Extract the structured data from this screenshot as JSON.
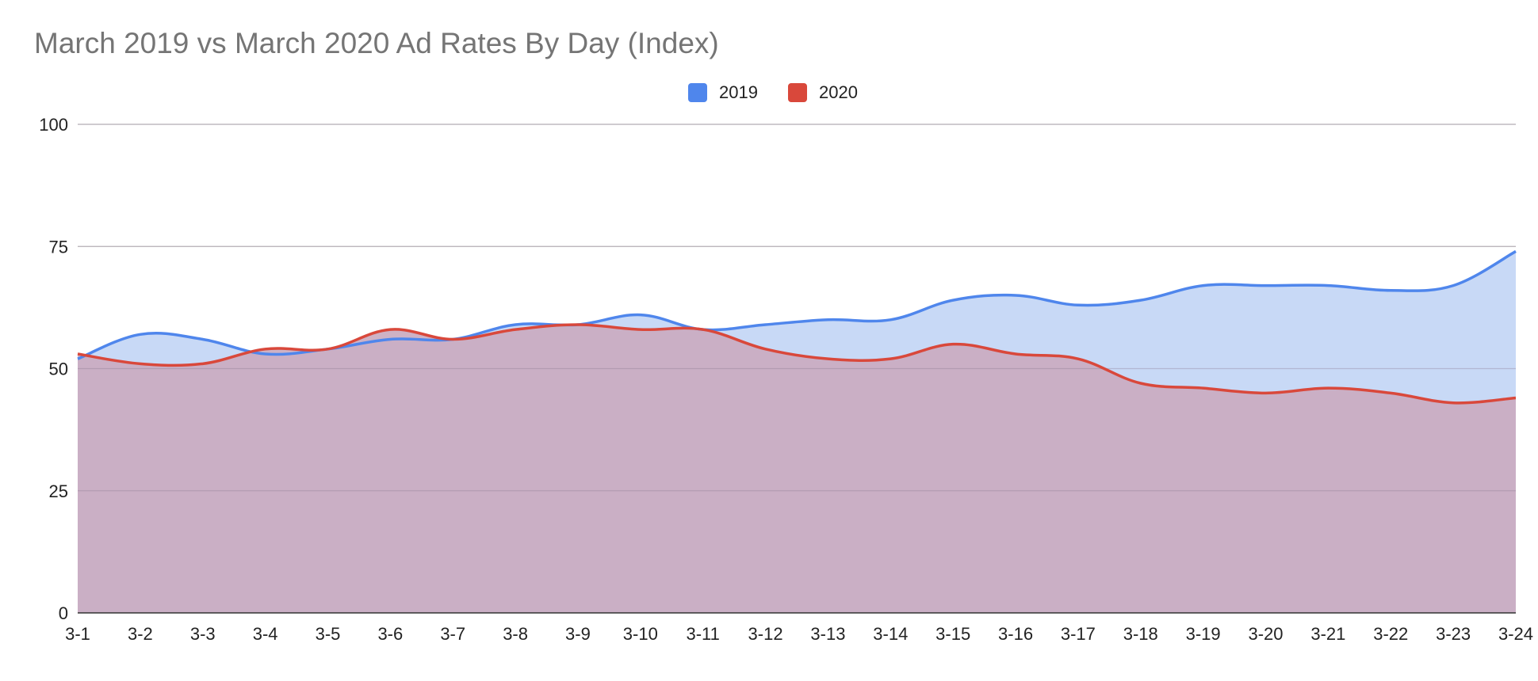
{
  "chart_data": {
    "type": "area",
    "title": "March 2019 vs March 2020 Ad Rates By Day (Index)",
    "xlabel": "",
    "ylabel": "",
    "categories": [
      "3-1",
      "3-2",
      "3-3",
      "3-4",
      "3-5",
      "3-6",
      "3-7",
      "3-8",
      "3-9",
      "3-10",
      "3-11",
      "3-12",
      "3-13",
      "3-14",
      "3-15",
      "3-16",
      "3-17",
      "3-18",
      "3-19",
      "3-20",
      "3-21",
      "3-22",
      "3-23",
      "3-24"
    ],
    "ylim": [
      0,
      100
    ],
    "yticks": [
      0,
      25,
      50,
      75,
      100
    ],
    "grid": true,
    "legend": "top",
    "series": [
      {
        "name": "2019",
        "color": "#4f86ec",
        "fill": "#c8d9f6",
        "values": [
          52,
          57,
          56,
          53,
          54,
          56,
          56,
          59,
          59,
          61,
          58,
          59,
          60,
          60,
          64,
          65,
          63,
          64,
          67,
          67,
          67,
          66,
          67,
          74
        ]
      },
      {
        "name": "2020",
        "color": "#d9483b",
        "fill": "#caabc0",
        "values": [
          53,
          51,
          51,
          54,
          54,
          58,
          56,
          58,
          59,
          58,
          58,
          54,
          52,
          52,
          55,
          53,
          52,
          47,
          46,
          45,
          46,
          45,
          43,
          44
        ]
      }
    ]
  }
}
